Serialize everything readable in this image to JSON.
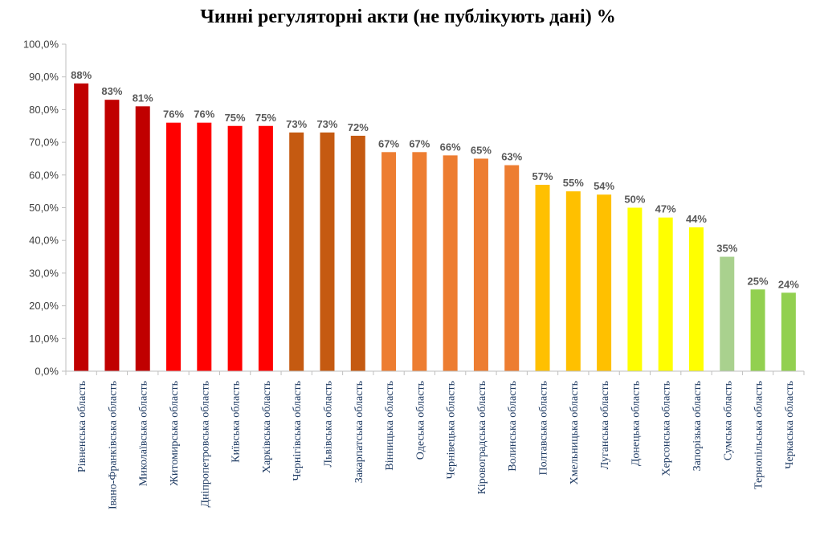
{
  "chart_data": {
    "type": "bar",
    "title": "Чинні регуляторні акти (не публікують дані) %",
    "xlabel": "",
    "ylabel": "",
    "ylim": [
      0,
      100
    ],
    "y_ticks": [
      "0,0%",
      "10,0%",
      "20,0%",
      "30,0%",
      "40,0%",
      "50,0%",
      "60,0%",
      "70,0%",
      "80,0%",
      "90,0%",
      "100,0%"
    ],
    "grid": false,
    "legend": "none",
    "categories": [
      "Рівненська область",
      "Івано-Франківська область",
      "Миколаївська область",
      "Житомирська область",
      "Дніпропетровська область",
      "Київська область",
      "Харківська область",
      "Чернігівська область",
      "Львівська область",
      "Закарпатська область",
      "Вінницька область",
      "Одеська область",
      "Чернівецька область",
      "Кіровоградська область",
      "Волинська область",
      "Полтавська область",
      "Хмельницька область",
      "Луганська область",
      "Донецька область",
      "Херсонська область",
      "Запорізька область",
      "Сумська область",
      "Тернопільська область",
      "Черкаська область"
    ],
    "values": [
      88,
      83,
      81,
      76,
      76,
      75,
      75,
      73,
      73,
      72,
      67,
      67,
      66,
      65,
      63,
      57,
      55,
      54,
      50,
      47,
      44,
      35,
      25,
      24
    ],
    "data_labels": [
      "88%",
      "83%",
      "81%",
      "76%",
      "76%",
      "75%",
      "75%",
      "73%",
      "73%",
      "72%",
      "67%",
      "67%",
      "66%",
      "65%",
      "63%",
      "57%",
      "55%",
      "54%",
      "50%",
      "47%",
      "44%",
      "35%",
      "25%",
      "24%"
    ],
    "colors": [
      "#c00000",
      "#c00000",
      "#c00000",
      "#ff0000",
      "#ff0000",
      "#ff0000",
      "#ff0000",
      "#c55a11",
      "#c55a11",
      "#c55a11",
      "#ed7d31",
      "#ed7d31",
      "#ed7d31",
      "#ed7d31",
      "#ed7d31",
      "#ffc000",
      "#ffc000",
      "#ffc000",
      "#ffff00",
      "#ffff00",
      "#ffff00",
      "#a9d18e",
      "#92d050",
      "#92d050"
    ]
  }
}
